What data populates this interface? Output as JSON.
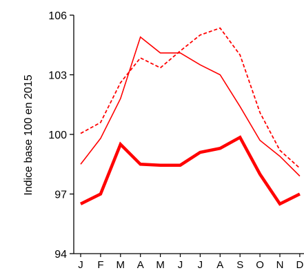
{
  "chart_data": {
    "type": "line",
    "ylabel": "Indice base 100 en 2015",
    "xlabel": "",
    "title": "",
    "categories": [
      "J",
      "F",
      "M",
      "A",
      "M",
      "J",
      "J",
      "A",
      "S",
      "O",
      "N",
      "D"
    ],
    "ylim": [
      94,
      106
    ],
    "yticks": [
      94,
      97,
      100,
      103,
      106
    ],
    "grid": false,
    "legend": "none",
    "series": [
      {
        "style": "thick-solid",
        "color": "#ff0000",
        "values": [
          96.5,
          97.0,
          99.5,
          98.5,
          98.45,
          98.45,
          99.1,
          99.3,
          99.85,
          98.0,
          96.5,
          97.0
        ]
      },
      {
        "style": "thin-solid",
        "color": "#ff0000",
        "values": [
          98.5,
          99.8,
          101.8,
          104.9,
          104.1,
          104.1,
          103.5,
          103.0,
          101.4,
          99.7,
          98.9,
          97.9
        ]
      },
      {
        "style": "thin-dashed",
        "color": "#ff0000",
        "values": [
          100.05,
          100.6,
          102.6,
          103.85,
          103.35,
          104.2,
          105.0,
          105.35,
          104.0,
          101.1,
          99.2,
          98.3
        ]
      }
    ]
  }
}
